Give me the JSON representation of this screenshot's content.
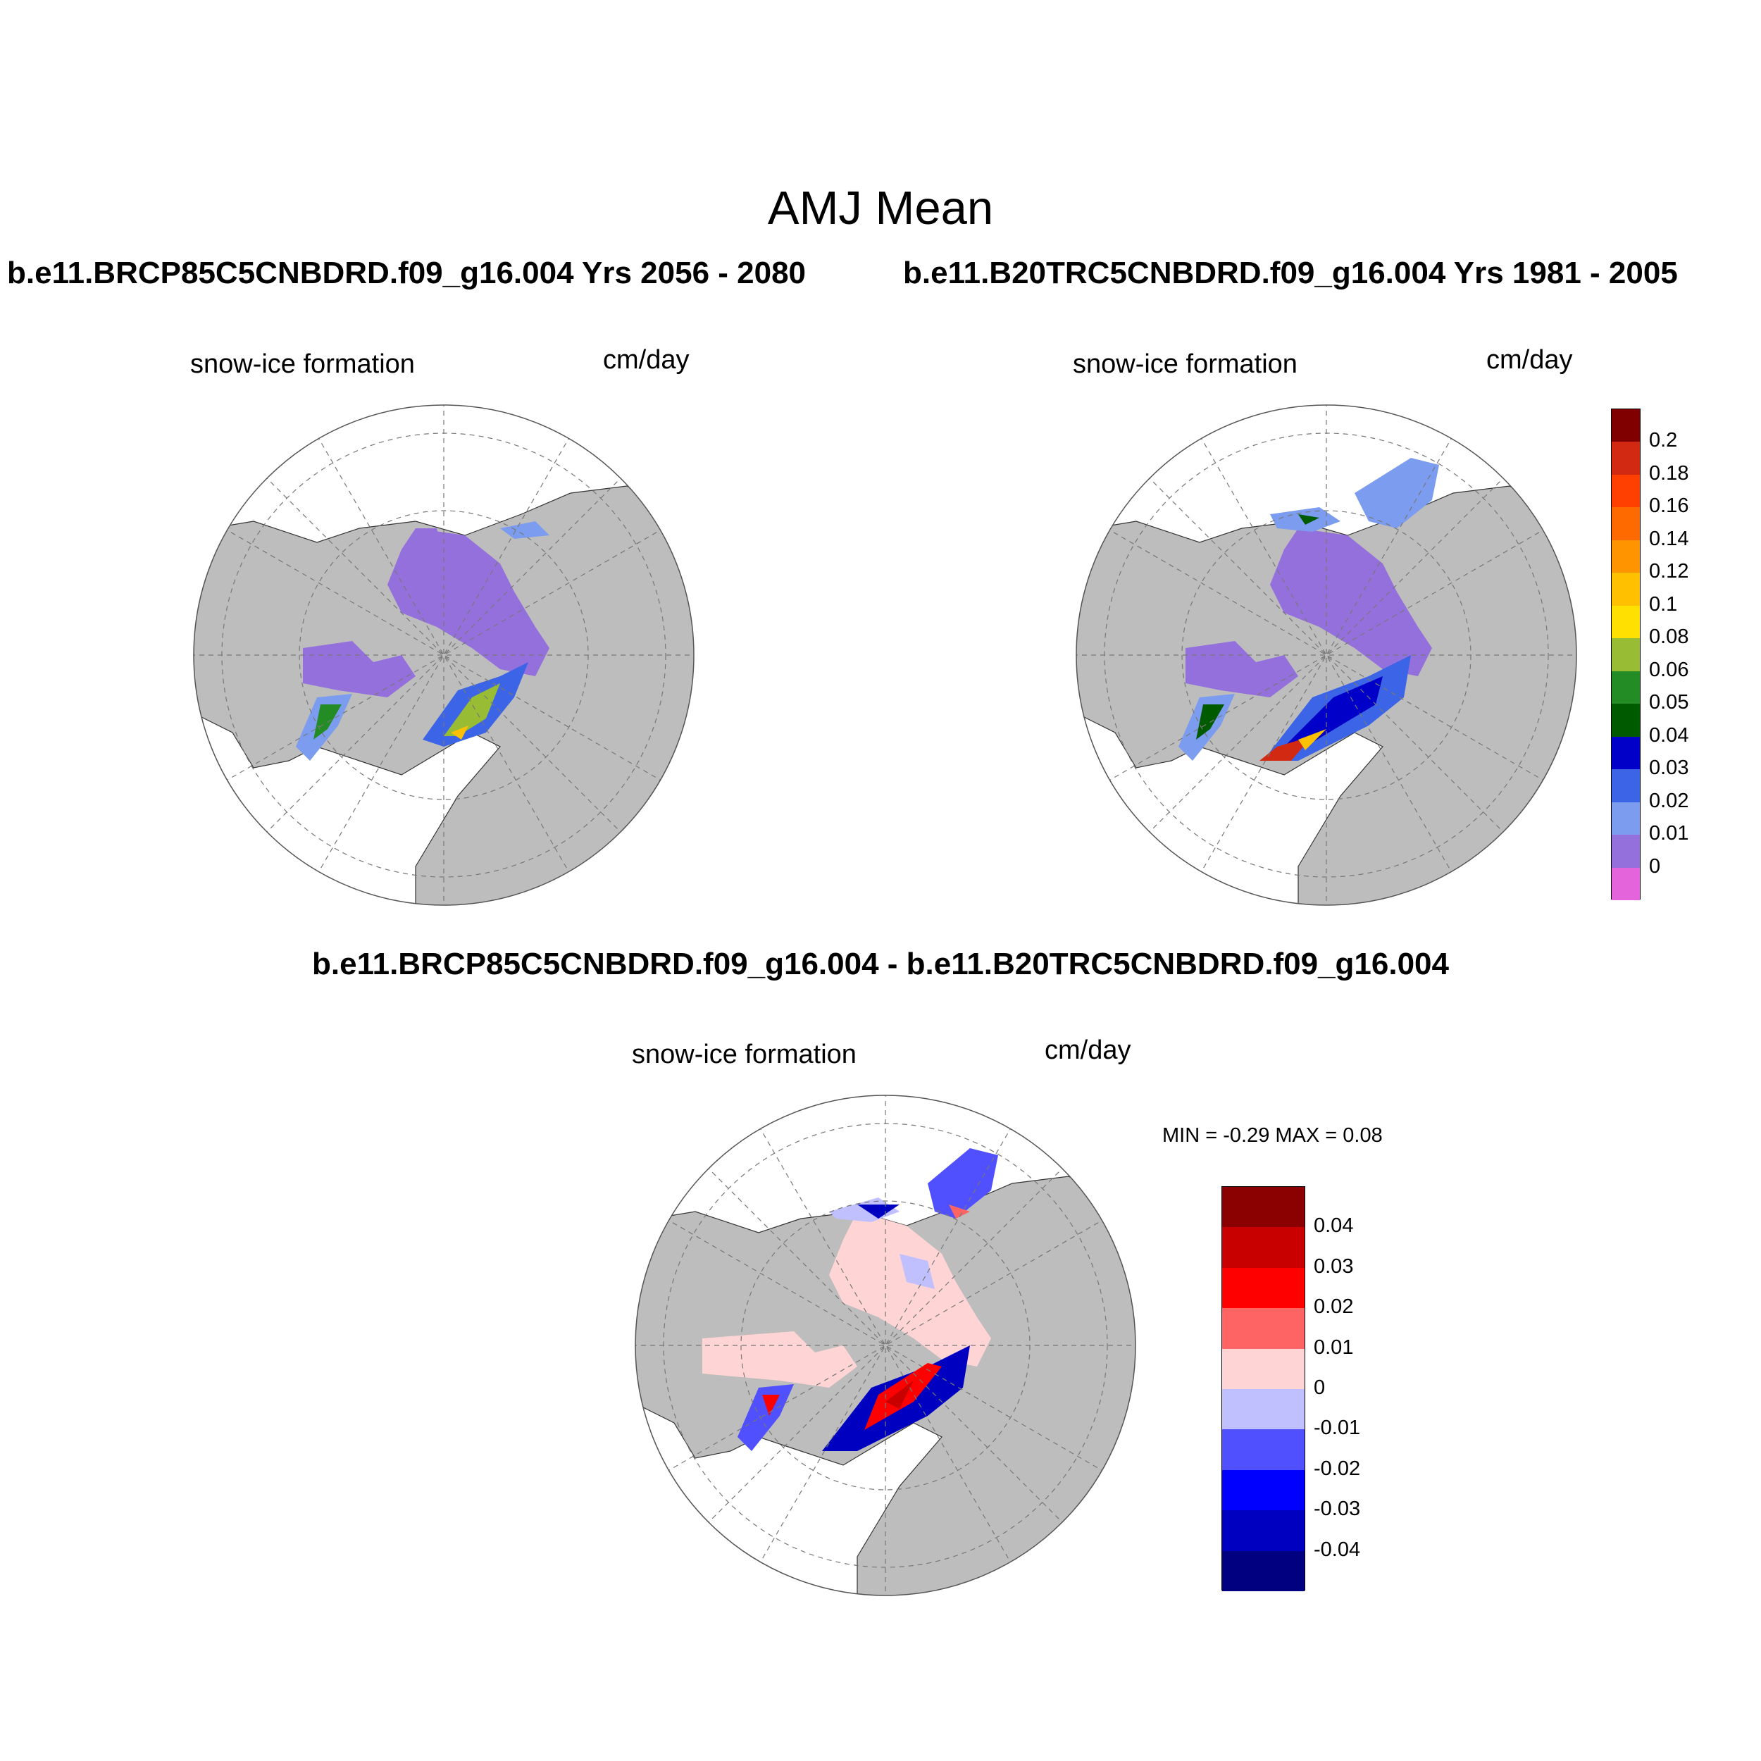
{
  "title": "AMJ Mean",
  "case_a_title": "b.e11.BRCP85C5CNBDRD.f09_g16.004  Yrs 2056 - 2080",
  "case_b_title": "b.e11.B20TRC5CNBDRD.f09_g16.004  Yrs 1981 - 2005",
  "diff_title": "b.e11.BRCP85C5CNBDRD.f09_g16.004 - b.e11.B20TRC5CNBDRD.f09_g16.004",
  "panels": [
    {
      "variable": "snow-ice formation",
      "units": "cm/day"
    },
    {
      "variable": "snow-ice formation",
      "units": "cm/day"
    },
    {
      "variable": "snow-ice formation",
      "units": "cm/day"
    }
  ],
  "diff_stats": {
    "min_label": "MIN =",
    "min": "-0.29",
    "max_label": "MAX =",
    "max": "0.08"
  },
  "colors": {
    "land": "#bdbdbd",
    "ocean": "#ffffff",
    "grid": "#777777",
    "ice_low": "#9470dc"
  },
  "colorbar_main": {
    "labels": [
      "0.2",
      "0.18",
      "0.16",
      "0.14",
      "0.12",
      "0.1",
      "0.08",
      "0.06",
      "0.05",
      "0.04",
      "0.03",
      "0.02",
      "0.01",
      "0"
    ],
    "colors": [
      "#800000",
      "#d22a12",
      "#ff4000",
      "#ff6a00",
      "#ff9400",
      "#ffc000",
      "#ffe000",
      "#98bc34",
      "#248c24",
      "#005a00",
      "#0000c8",
      "#3c64e6",
      "#7c9cf0",
      "#9470dc",
      "#e464dc"
    ]
  },
  "colorbar_diff": {
    "labels": [
      "0.04",
      "0.03",
      "0.02",
      "0.01",
      "0",
      "-0.01",
      "-0.02",
      "-0.03",
      "-0.04"
    ],
    "colors": [
      "#8b0000",
      "#c80000",
      "#ff0000",
      "#ff6464",
      "#ffd4d4",
      "#c0c0ff",
      "#5050ff",
      "#0000ff",
      "#0000c0",
      "#000080"
    ]
  }
}
